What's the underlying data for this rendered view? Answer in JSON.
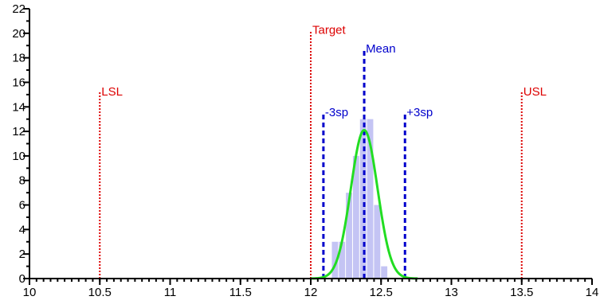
{
  "chart_data": {
    "type": "bar",
    "title": "",
    "xlabel": "",
    "ylabel": "",
    "xlim": [
      10,
      14
    ],
    "ylim": [
      0,
      22
    ],
    "x_major_ticks": [
      10,
      10.5,
      11,
      11.5,
      12,
      12.5,
      13,
      13.5,
      14
    ],
    "x_tick_labels": [
      "10",
      "10.5",
      "11",
      "11.5",
      "12",
      "12.5",
      "13",
      "13.5",
      "14"
    ],
    "y_ticks": [
      0,
      2,
      4,
      6,
      8,
      10,
      12,
      14,
      16,
      18,
      20,
      22
    ],
    "y_tick_labels": [
      "0",
      "2",
      "4",
      "6",
      "8",
      "10",
      "12",
      "14",
      "16",
      "18",
      "20",
      "22"
    ],
    "grid": false,
    "histogram": {
      "bin_width": 0.05,
      "bins": [
        {
          "start": 12.15,
          "count": 3
        },
        {
          "start": 12.2,
          "count": 3
        },
        {
          "start": 12.25,
          "count": 7
        },
        {
          "start": 12.3,
          "count": 10
        },
        {
          "start": 12.35,
          "count": 13
        },
        {
          "start": 12.4,
          "count": 13
        },
        {
          "start": 12.45,
          "count": 6
        },
        {
          "start": 12.5,
          "count": 1
        }
      ],
      "color": "#c4c4f4"
    },
    "normal_curve": {
      "mean": 12.38,
      "sd": 0.095,
      "peak": 12.1,
      "color": "#22dd22"
    },
    "reference_lines": [
      {
        "label": "LSL",
        "x": 10.5,
        "top": 15.2,
        "color": "#dd0000",
        "style": "dotted"
      },
      {
        "label": "Target",
        "x": 12.0,
        "top": 20.2,
        "color": "#dd0000",
        "style": "dotted"
      },
      {
        "label": "USL",
        "x": 13.5,
        "top": 15.2,
        "color": "#dd0000",
        "style": "dotted"
      },
      {
        "label": "Mean",
        "x": 12.38,
        "top": 18.7,
        "color": "#0000cc",
        "style": "dashed"
      },
      {
        "label": "-3sp",
        "x": 12.09,
        "top": 13.5,
        "color": "#0000cc",
        "style": "dashed"
      },
      {
        "label": "+3sp",
        "x": 12.67,
        "top": 13.5,
        "color": "#0000cc",
        "style": "dashed"
      }
    ]
  }
}
